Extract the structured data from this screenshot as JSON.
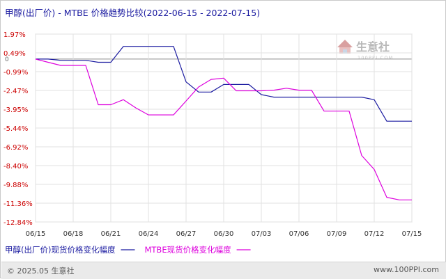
{
  "chart_data": {
    "type": "line",
    "title": "甲醇(出厂价) - MTBE 价格趋势比较(2022-06-15 - 2022-07-15)",
    "xlabel": "",
    "ylabel": "",
    "x": [
      "06/15",
      "06/16",
      "06/17",
      "06/18",
      "06/19",
      "06/20",
      "06/21",
      "06/22",
      "06/23",
      "06/24",
      "06/25",
      "06/26",
      "06/27",
      "06/28",
      "06/29",
      "06/30",
      "07/01",
      "07/02",
      "07/03",
      "07/04",
      "07/05",
      "07/06",
      "07/07",
      "07/08",
      "07/09",
      "07/10",
      "07/11",
      "07/12",
      "07/13",
      "07/14",
      "07/15"
    ],
    "x_tick_labels": [
      "06/15",
      "06/18",
      "06/21",
      "06/24",
      "06/27",
      "06/30",
      "07/03",
      "07/06",
      "07/09",
      "07/12",
      "07/15"
    ],
    "y_tick_labels": [
      "1.97%",
      "0.49%",
      "-0.99%",
      "-2.47%",
      "-3.95%",
      "-5.44%",
      "-6.92%",
      "-8.40%",
      "-9.88%",
      "-11.36%",
      "-12.84%"
    ],
    "ylim": [
      -12.84,
      1.97
    ],
    "y_unit": "%",
    "grid": true,
    "legend_position": "bottom-left",
    "series": [
      {
        "name": "甲醇(出厂价)现货价格变化幅度",
        "color": "#1a1aa0",
        "values": [
          0,
          0,
          -0.1,
          -0.1,
          -0.1,
          -0.25,
          -0.25,
          1.0,
          1.0,
          1.0,
          1.0,
          1.0,
          -1.8,
          -2.6,
          -2.6,
          -2.0,
          -2.0,
          -2.0,
          -2.8,
          -3.0,
          -3.0,
          -3.0,
          -3.0,
          -3.0,
          -3.0,
          -3.0,
          -3.0,
          -3.2,
          -4.9,
          -4.9,
          -4.9
        ]
      },
      {
        "name": "MTBE现货价格变化幅度",
        "color": "#dd00dd",
        "values": [
          0,
          -0.25,
          -0.5,
          -0.5,
          -0.5,
          -3.6,
          -3.6,
          -3.2,
          -3.85,
          -4.4,
          -4.4,
          -4.4,
          -3.3,
          -2.2,
          -1.6,
          -1.5,
          -2.5,
          -2.5,
          -2.5,
          -2.45,
          -2.3,
          -2.45,
          -2.45,
          -4.1,
          -4.1,
          -4.1,
          -7.6,
          -8.7,
          -10.9,
          -11.1,
          -11.1
        ]
      }
    ]
  },
  "watermark": {
    "name": "生意社",
    "url": "100PPI.COM"
  },
  "footer": {
    "copyright": "© 2025.05 生意社",
    "site": "www.100PPI.com"
  }
}
